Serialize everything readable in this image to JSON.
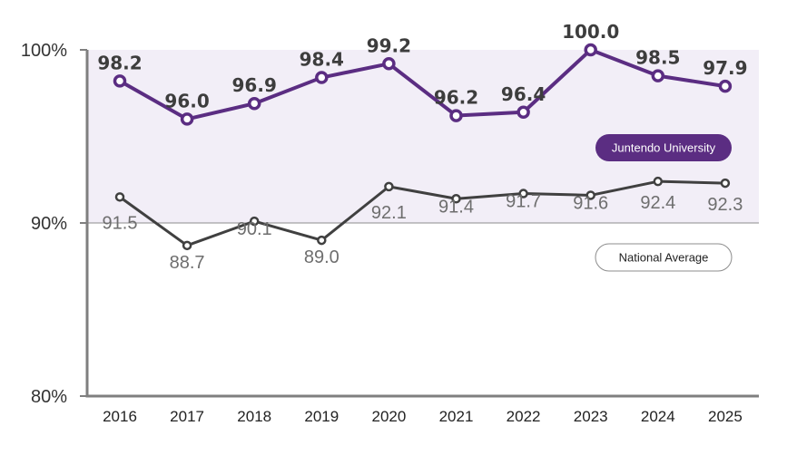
{
  "chart_data": {
    "type": "line",
    "categories": [
      "2016",
      "2017",
      "2018",
      "2019",
      "2020",
      "2021",
      "2022",
      "2023",
      "2024",
      "2025"
    ],
    "ylim": [
      80,
      100
    ],
    "yticks": [
      "80%",
      "90%",
      "100%"
    ],
    "grid": false,
    "highlight_band": [
      90,
      100
    ],
    "series": [
      {
        "name": "Juntendo University",
        "values": [
          98.2,
          96.0,
          96.9,
          98.4,
          99.2,
          96.2,
          96.4,
          100.0,
          98.5,
          97.9
        ],
        "labels": [
          "98.2",
          "96.0",
          "96.9",
          "98.4",
          "99.2",
          "96.2",
          "96.4",
          "100.0",
          "98.5",
          "97.9"
        ],
        "color": "#5b2d82"
      },
      {
        "name": "National Average",
        "values": [
          91.5,
          88.7,
          90.1,
          89.0,
          92.1,
          91.4,
          91.7,
          91.6,
          92.4,
          92.3
        ],
        "labels": [
          "91.5",
          "88.7",
          "90.1",
          "89.0",
          "92.1",
          "91.4",
          "91.7",
          "91.6",
          "92.4",
          "92.3"
        ],
        "color": "#404040"
      }
    ],
    "colors": {
      "band": "#f2eef7",
      "axis": "#7f7f7f",
      "reference": "#8c8c8c"
    }
  }
}
